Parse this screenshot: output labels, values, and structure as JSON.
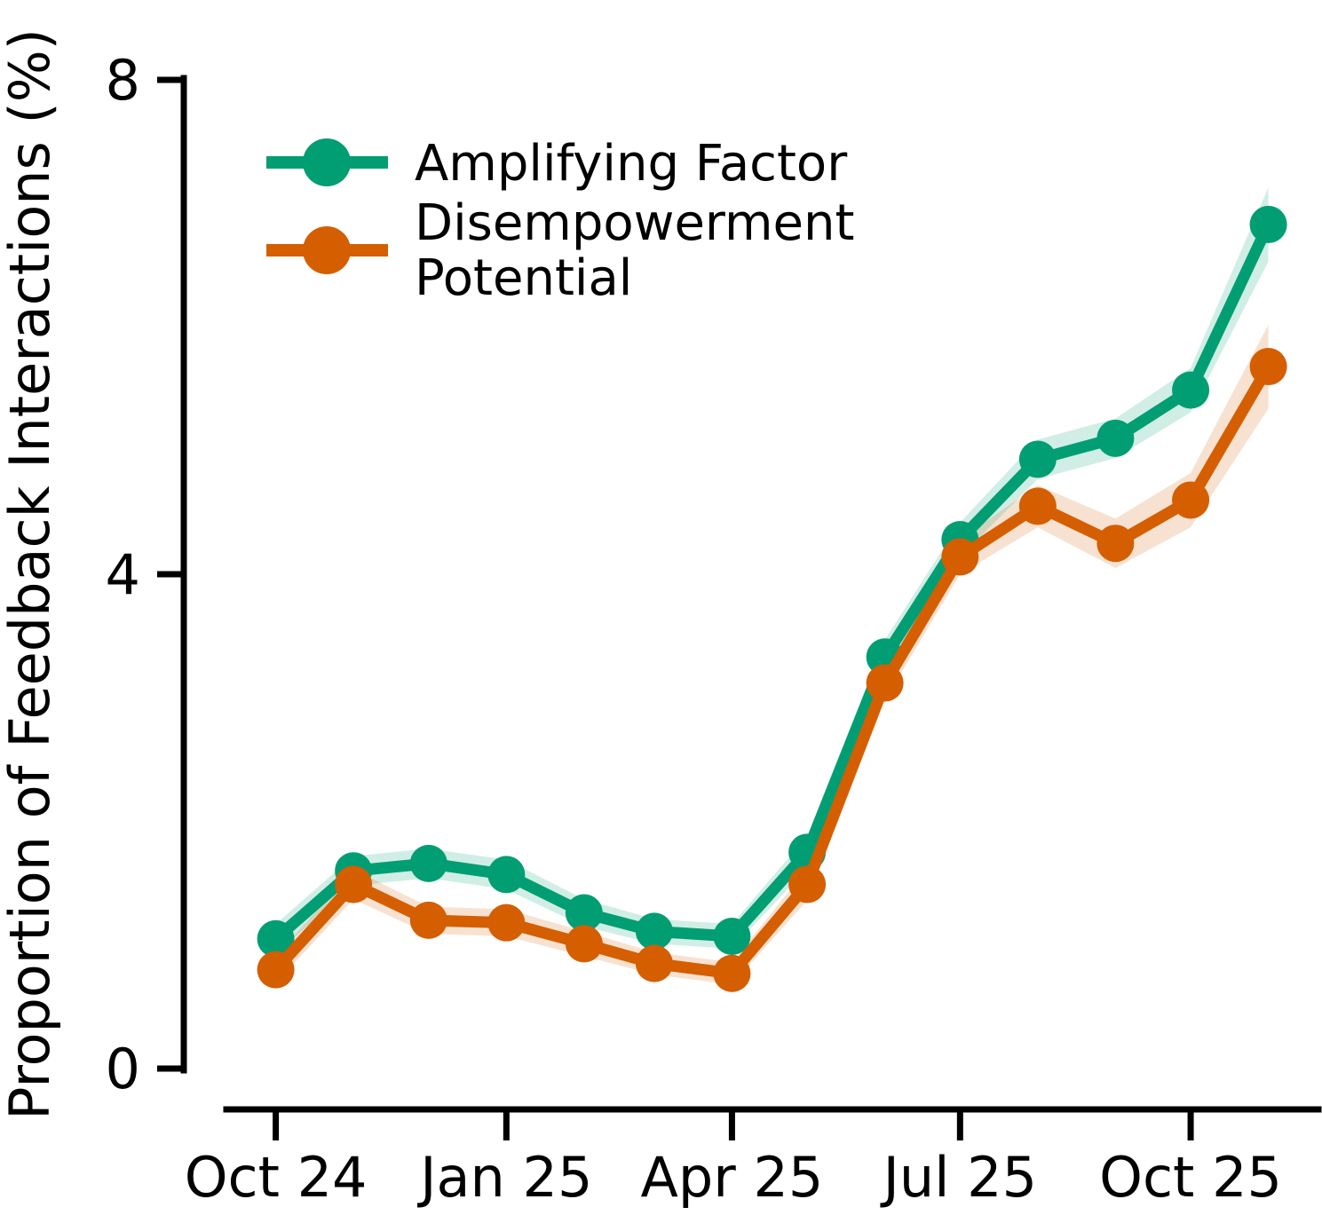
{
  "chart_data": {
    "type": "line",
    "title": "",
    "xlabel": "",
    "ylabel": "Proportion of Feedback Interactions (%)",
    "ylim": [
      0,
      8
    ],
    "yticks": [
      0,
      4,
      8
    ],
    "grid": false,
    "legend_position": "upper left",
    "categories": [
      "Oct 24",
      "Nov 24",
      "Dec 24",
      "Jan 25",
      "Feb 25",
      "Mar 25",
      "Apr 25",
      "May 25",
      "Jun 25",
      "Jul 25",
      "Aug 25",
      "Sep 25",
      "Oct 25",
      "Nov 25"
    ],
    "x_days": [
      0,
      31,
      61,
      92,
      123,
      151,
      182,
      212,
      243,
      273,
      304,
      335,
      365,
      396
    ],
    "x_tick_labels": [
      "Oct 24",
      "Jan 25",
      "Apr 25",
      "Jul 25",
      "Oct 25"
    ],
    "x_tick_days": [
      0,
      92,
      182,
      273,
      365
    ],
    "series": [
      {
        "name": "Amplifying Factor",
        "color": "#029E73",
        "values": [
          1.05,
          1.6,
          1.66,
          1.57,
          1.26,
          1.11,
          1.07,
          1.75,
          3.33,
          4.28,
          4.93,
          5.1,
          5.49,
          6.83
        ],
        "ci": [
          0.12,
          0.12,
          0.12,
          0.12,
          0.11,
          0.1,
          0.1,
          0.13,
          0.14,
          0.14,
          0.16,
          0.16,
          0.18,
          0.3
        ]
      },
      {
        "name": "Disempowerment Potential",
        "color": "#D55E00",
        "values": [
          0.8,
          1.49,
          1.2,
          1.18,
          1.01,
          0.85,
          0.77,
          1.49,
          3.12,
          4.14,
          4.55,
          4.25,
          4.6,
          5.68
        ],
        "ci": [
          0.11,
          0.12,
          0.11,
          0.11,
          0.1,
          0.09,
          0.09,
          0.13,
          0.14,
          0.14,
          0.17,
          0.2,
          0.22,
          0.34
        ]
      }
    ],
    "band_opacity": 0.18
  },
  "legend": {
    "rows": [
      [
        "Amplifying Factor"
      ],
      [
        "Disempowerment",
        "Potential"
      ]
    ]
  }
}
